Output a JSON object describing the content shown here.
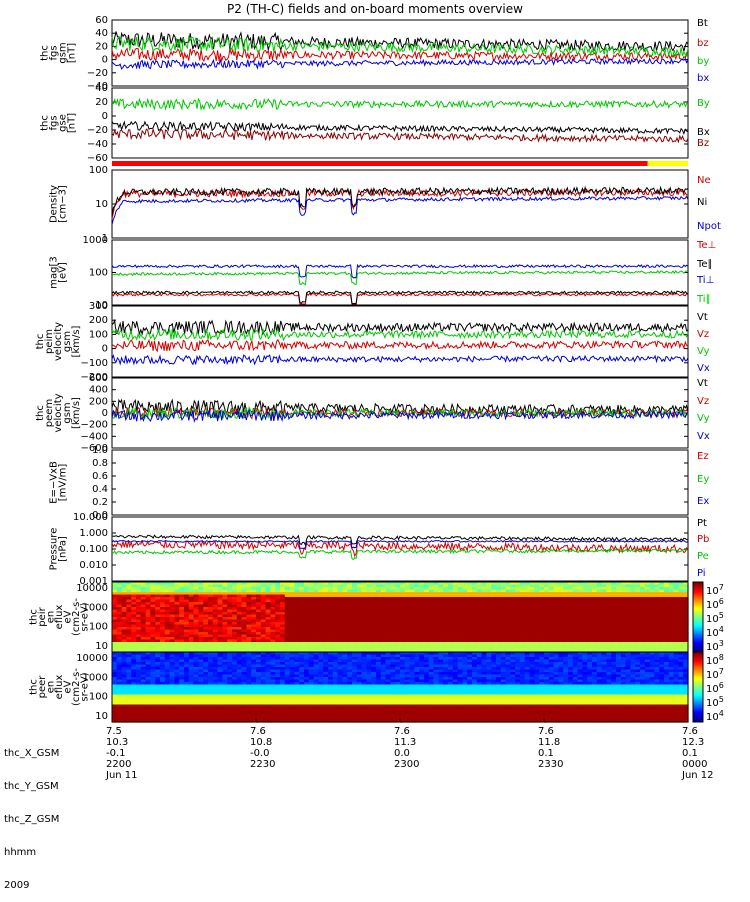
{
  "title": "P2 (TH-C) fields and on-board moments overview",
  "chart_data": {
    "type": "line",
    "x_ticks": [
      "2200",
      "2230",
      "2300",
      "2330",
      "0000"
    ],
    "time_range": [
      "2009 Jun 11 22:00",
      "2009 Jun 12 00:00"
    ],
    "panels": [
      {
        "id": "fgs_gsm",
        "ylabel": [
          "thc",
          "fgs",
          "gsm",
          "[nT]"
        ],
        "ylim": [
          -40,
          60
        ],
        "yticks": [
          "60",
          "40",
          "20",
          "0",
          "−20",
          "−40"
        ],
        "series": [
          {
            "name": "Bt",
            "color": "#000000",
            "level": 30,
            "end": 20,
            "noise": 8
          },
          {
            "name": "bz",
            "color": "#d40000",
            "level": 8,
            "end": 5,
            "noise": 6
          },
          {
            "name": "by",
            "color": "#00c800",
            "level": 25,
            "end": 12,
            "noise": 7
          },
          {
            "name": "bx",
            "color": "#0000d8",
            "level": -8,
            "end": -2,
            "noise": 4
          }
        ]
      },
      {
        "id": "fgs_gse",
        "ylabel": [
          "thc",
          "fgs",
          "gse",
          "[nT]"
        ],
        "ylim": [
          -70,
          60
        ],
        "yticks": [
          "40",
          "20",
          "0",
          "−20",
          "−40",
          "−60"
        ],
        "series": [
          {
            "name": "By",
            "color": "#00c800",
            "level": 30,
            "end": 30,
            "noise": 6
          },
          {
            "name": "Bx",
            "color": "#000000",
            "level": -10,
            "end": -20,
            "noise": 5
          },
          {
            "name": "Bz",
            "color": "#8b0000",
            "level": -25,
            "end": -35,
            "noise": 6
          }
        ]
      },
      {
        "id": "density",
        "ylabel": [
          "Density",
          "[cm−3]"
        ],
        "log": true,
        "ylim": [
          1,
          100
        ],
        "yticks": [
          "100",
          "10",
          "1"
        ],
        "series": [
          {
            "name": "Ne",
            "color": "#d40000",
            "level": 20,
            "end": 22,
            "noise": 0.1
          },
          {
            "name": "Ni",
            "color": "#000000",
            "level": 22,
            "end": 25,
            "noise": 0.1
          },
          {
            "name": "Npot",
            "color": "#0000d8",
            "level": 12,
            "end": 15,
            "noise": 0.05
          }
        ]
      },
      {
        "id": "temperature",
        "ylabel": [
          "mag[3",
          "[eV]"
        ],
        "log": true,
        "ylim": [
          10,
          3000
        ],
        "yticks": [
          "1000",
          "100",
          "10"
        ],
        "series": [
          {
            "name": "Te⊥",
            "color": "#d40000",
            "level": 25,
            "end": 25,
            "noise": 0.05
          },
          {
            "name": "Te∥",
            "color": "#000000",
            "level": 30,
            "end": 30,
            "noise": 0.05
          },
          {
            "name": "Ti⊥",
            "color": "#0000d8",
            "level": 300,
            "end": 300,
            "noise": 0.05
          },
          {
            "name": "Ti∥",
            "color": "#00c800",
            "level": 150,
            "end": 180,
            "noise": 0.05
          }
        ]
      },
      {
        "id": "peim_velocity",
        "ylabel": [
          "thc",
          "peim",
          "velocity",
          "gsm",
          "[km/s]"
        ],
        "ylim": [
          -200,
          300
        ],
        "yticks": [
          "300",
          "200",
          "100",
          "0",
          "−100",
          "−200"
        ],
        "series": [
          {
            "name": "Vt",
            "color": "#000000",
            "level": 150,
            "end": 150,
            "noise": 30
          },
          {
            "name": "Vz",
            "color": "#d40000",
            "level": 20,
            "end": 30,
            "noise": 25
          },
          {
            "name": "Vy",
            "color": "#00c800",
            "level": 100,
            "end": 100,
            "noise": 25
          },
          {
            "name": "Vx",
            "color": "#0000d8",
            "level": -80,
            "end": -70,
            "noise": 20
          }
        ]
      },
      {
        "id": "peem_velocity",
        "ylabel": [
          "thc",
          "peem",
          "velocity",
          "gsm",
          "[km/s]"
        ],
        "ylim": [
          -600,
          600
        ],
        "yticks": [
          "600",
          "400",
          "200",
          "0",
          "−200",
          "−400",
          "−600"
        ],
        "series": [
          {
            "name": "Vt",
            "color": "#000000",
            "level": 100,
            "end": 50,
            "noise": 80
          },
          {
            "name": "Vz",
            "color": "#d40000",
            "level": 0,
            "end": 0,
            "noise": 60
          },
          {
            "name": "Vy",
            "color": "#00c800",
            "level": 0,
            "end": 0,
            "noise": 60
          },
          {
            "name": "Vx",
            "color": "#0000d8",
            "level": -50,
            "end": -30,
            "noise": 60
          }
        ]
      },
      {
        "id": "efield",
        "ylabel": [
          "E=−VxB",
          "[mV/m]"
        ],
        "ylim": [
          0,
          1
        ],
        "yticks": [
          "1.0",
          "0.8",
          "0.6",
          "0.4",
          "0.2",
          "0.0"
        ],
        "series": [
          {
            "name": "Ez",
            "color": "#d40000"
          },
          {
            "name": "Ey",
            "color": "#00c800"
          },
          {
            "name": "Ex",
            "color": "#0000d8"
          }
        ]
      },
      {
        "id": "pressure",
        "ylabel": [
          "Pressure",
          "[nPa]"
        ],
        "log": true,
        "ylim": [
          0.001,
          10
        ],
        "yticks": [
          "10.000",
          "1.000",
          "0.100",
          "0.010",
          "0.001"
        ],
        "series": [
          {
            "name": "Pt",
            "color": "#000000",
            "level": 0.6,
            "end": 0.4,
            "noise": 0.1
          },
          {
            "name": "Pb",
            "color": "#d40000",
            "level": 0.2,
            "end": 0.1,
            "noise": 0.25
          },
          {
            "name": "Pe",
            "color": "#00c800",
            "level": 0.06,
            "end": 0.08,
            "noise": 0.1
          },
          {
            "name": "Pi",
            "color": "#0000d8",
            "level": 0.3,
            "end": 0.3,
            "noise": 0.05
          }
        ]
      }
    ],
    "spectrograms": [
      {
        "id": "peir_eflux",
        "ylabel": [
          "thc",
          "peir",
          "en",
          "eflux",
          "eV",
          "(cm2-s-",
          "sr-eV)"
        ],
        "yticks": [
          "10000",
          "1000",
          "100",
          "10"
        ],
        "colorbar_ticks": [
          "7",
          "6",
          "5",
          "4",
          "3"
        ],
        "colorbar_base": "10"
      },
      {
        "id": "peer_eflux",
        "ylabel": [
          "thc",
          "peer",
          "en",
          "eflux",
          "eV",
          "(cm2-s-",
          "sr-eV)"
        ],
        "yticks": [
          "10000",
          "1000",
          "100",
          "10"
        ],
        "colorbar_ticks": [
          "8",
          "7",
          "6",
          "5",
          "4"
        ],
        "colorbar_base": "10"
      }
    ]
  },
  "footer": {
    "row_labels": [
      "thc_X_GSM",
      "thc_Y_GSM",
      "thc_Z_GSM",
      "hhmm",
      "2009"
    ],
    "columns": [
      [
        "7.5",
        "10.3",
        "-0.1",
        "2200",
        "Jun 11"
      ],
      [
        "7.6",
        "10.8",
        "-0.0",
        "2230",
        ""
      ],
      [
        "7.6",
        "11.3",
        "0.0",
        "2300",
        ""
      ],
      [
        "7.6",
        "11.8",
        "0.1",
        "2330",
        ""
      ],
      [
        "7.6",
        "12.3",
        "0.1",
        "0000",
        "Jun 12"
      ]
    ]
  },
  "colors": {
    "status_bar_main": "#ff0000",
    "status_bar_end": "#ffff00"
  }
}
